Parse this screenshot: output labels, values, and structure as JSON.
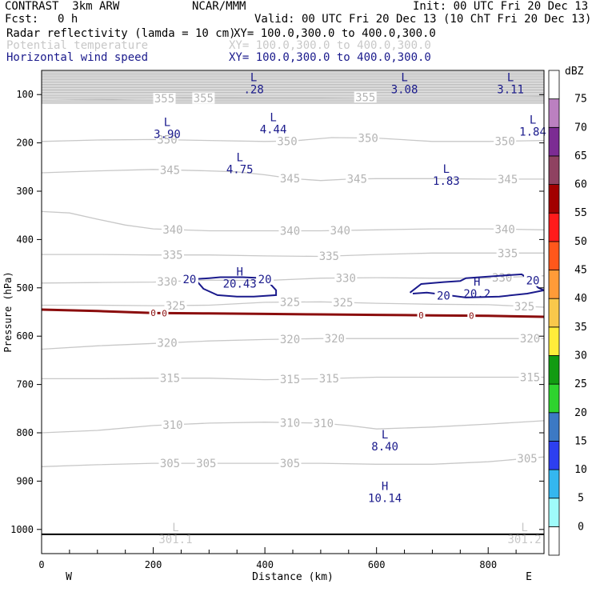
{
  "header": {
    "title": "CONTRAST  3km ARW",
    "center": "NCAR/MMM",
    "init": "Init: 00 UTC Fri 20 Dec 13",
    "fcst_label": "Fcst:",
    "fcst_value": "0 h",
    "valid": "Valid: 00 UTC Fri 20 Dec 13 (10 ChT Fri 20 Dec 13)",
    "fields": [
      {
        "name": "Radar reflectivity (lamda = 10 cm)",
        "xy": "XY= 100.0,300.0 to 400.0,300.0",
        "color": "#000000"
      },
      {
        "name": "Potential temperature",
        "xy": "XY= 100.0,300.0 to 400.0,300.0",
        "color": "#c8c8c8"
      },
      {
        "name": "Horizontal wind speed",
        "xy": "XY= 100.0,300.0 to 400.0,300.0",
        "color": "#1a1a8c"
      }
    ]
  },
  "chart_data": {
    "type": "cross-section contour",
    "xlabel": "Distance (km)",
    "ylabel": "Pressure (hPa)",
    "xlim": [
      0,
      900
    ],
    "ylim": [
      1050,
      50
    ],
    "x_ticks": [
      0,
      200,
      400,
      600,
      800
    ],
    "y_ticks": [
      100,
      200,
      300,
      400,
      500,
      600,
      700,
      800,
      900,
      1000
    ],
    "west_label": "W",
    "east_label": "E",
    "theta_contours": [
      {
        "value": "355",
        "points": [
          [
            0,
            112
          ],
          [
            100,
            110
          ],
          [
            200,
            108
          ],
          [
            300,
            107
          ],
          [
            400,
            106
          ],
          [
            500,
            106
          ],
          [
            600,
            105
          ],
          [
            700,
            105
          ],
          [
            800,
            105
          ],
          [
            900,
            104
          ]
        ],
        "labels": [
          [
            220,
            "355"
          ],
          [
            290,
            "355"
          ],
          [
            580,
            "355"
          ]
        ]
      },
      {
        "value": "350",
        "points": [
          [
            0,
            197
          ],
          [
            100,
            194
          ],
          [
            200,
            193
          ],
          [
            300,
            195
          ],
          [
            400,
            197
          ],
          [
            450,
            196
          ],
          [
            520,
            189
          ],
          [
            600,
            190
          ],
          [
            700,
            197
          ],
          [
            800,
            197
          ],
          [
            900,
            195
          ]
        ],
        "labels": [
          [
            225,
            "350"
          ],
          [
            440,
            "350"
          ],
          [
            585,
            "350"
          ],
          [
            830,
            "350"
          ]
        ]
      },
      {
        "value": "345",
        "points": [
          [
            0,
            262
          ],
          [
            100,
            258
          ],
          [
            200,
            255
          ],
          [
            300,
            258
          ],
          [
            350,
            260
          ],
          [
            400,
            266
          ],
          [
            450,
            274
          ],
          [
            500,
            278
          ],
          [
            550,
            275
          ],
          [
            600,
            274
          ],
          [
            700,
            274
          ],
          [
            800,
            275
          ],
          [
            900,
            275
          ]
        ],
        "labels": [
          [
            230,
            "345"
          ],
          [
            445,
            "345"
          ],
          [
            565,
            "345"
          ],
          [
            835,
            "345"
          ]
        ]
      },
      {
        "value": "340",
        "points": [
          [
            0,
            342
          ],
          [
            50,
            345
          ],
          [
            100,
            358
          ],
          [
            150,
            370
          ],
          [
            200,
            378
          ],
          [
            300,
            382
          ],
          [
            400,
            382
          ],
          [
            500,
            382
          ],
          [
            600,
            380
          ],
          [
            700,
            378
          ],
          [
            800,
            378
          ],
          [
            900,
            380
          ]
        ],
        "labels": [
          [
            235,
            "340"
          ],
          [
            445,
            "340"
          ],
          [
            535,
            "340"
          ],
          [
            830,
            "340"
          ]
        ]
      },
      {
        "value": "335",
        "points": [
          [
            0,
            431
          ],
          [
            100,
            431
          ],
          [
            200,
            432
          ],
          [
            300,
            432
          ],
          [
            400,
            434
          ],
          [
            500,
            435
          ],
          [
            600,
            431
          ],
          [
            700,
            428
          ],
          [
            800,
            428
          ],
          [
            900,
            428
          ]
        ],
        "labels": [
          [
            235,
            "335"
          ],
          [
            515,
            "335"
          ],
          [
            835,
            "335"
          ]
        ]
      },
      {
        "value": "330",
        "points": [
          [
            0,
            490
          ],
          [
            100,
            489
          ],
          [
            200,
            488
          ],
          [
            300,
            484
          ],
          [
            400,
            485
          ],
          [
            500,
            480
          ],
          [
            600,
            479
          ],
          [
            700,
            480
          ],
          [
            800,
            480
          ],
          [
            900,
            475
          ]
        ],
        "labels": [
          [
            225,
            "330"
          ],
          [
            545,
            "330"
          ],
          [
            825,
            "330"
          ]
        ]
      },
      {
        "value": "325",
        "points": [
          [
            0,
            536
          ],
          [
            100,
            536
          ],
          [
            200,
            537
          ],
          [
            300,
            536
          ],
          [
            400,
            530
          ],
          [
            500,
            529
          ],
          [
            600,
            532
          ],
          [
            700,
            534
          ],
          [
            800,
            535
          ],
          [
            900,
            540
          ]
        ],
        "labels": [
          [
            240,
            "325"
          ],
          [
            445,
            "325"
          ],
          [
            540,
            "325"
          ],
          [
            865,
            "325"
          ]
        ]
      },
      {
        "value": "320",
        "points": [
          [
            0,
            627
          ],
          [
            100,
            620
          ],
          [
            200,
            615
          ],
          [
            300,
            610
          ],
          [
            400,
            607
          ],
          [
            500,
            605
          ],
          [
            600,
            605
          ],
          [
            700,
            605
          ],
          [
            800,
            605
          ],
          [
            900,
            605
          ]
        ],
        "labels": [
          [
            225,
            "320"
          ],
          [
            445,
            "320"
          ],
          [
            525,
            "320"
          ],
          [
            875,
            "320"
          ]
        ]
      },
      {
        "value": "315",
        "points": [
          [
            0,
            688
          ],
          [
            100,
            688
          ],
          [
            200,
            687
          ],
          [
            300,
            687
          ],
          [
            400,
            690
          ],
          [
            500,
            688
          ],
          [
            600,
            685
          ],
          [
            700,
            685
          ],
          [
            800,
            685
          ],
          [
            900,
            685
          ]
        ],
        "labels": [
          [
            230,
            "315"
          ],
          [
            445,
            "315"
          ],
          [
            515,
            "315"
          ],
          [
            875,
            "315"
          ]
        ]
      },
      {
        "value": "310",
        "points": [
          [
            0,
            800
          ],
          [
            100,
            795
          ],
          [
            200,
            785
          ],
          [
            300,
            780
          ],
          [
            400,
            778
          ],
          [
            500,
            780
          ],
          [
            550,
            785
          ],
          [
            600,
            792
          ],
          [
            700,
            788
          ],
          [
            800,
            782
          ],
          [
            900,
            775
          ]
        ],
        "labels": [
          [
            235,
            "310"
          ],
          [
            445,
            "310"
          ],
          [
            505,
            "310"
          ]
        ]
      },
      {
        "value": "305",
        "points": [
          [
            0,
            870
          ],
          [
            100,
            866
          ],
          [
            200,
            863
          ],
          [
            300,
            863
          ],
          [
            400,
            863
          ],
          [
            500,
            863
          ],
          [
            600,
            865
          ],
          [
            700,
            865
          ],
          [
            800,
            860
          ],
          [
            900,
            850
          ]
        ],
        "labels": [
          [
            230,
            "305"
          ],
          [
            295,
            "305"
          ],
          [
            445,
            "305"
          ],
          [
            870,
            "305"
          ]
        ]
      }
    ],
    "freezing_level": {
      "label": "0",
      "points": [
        [
          0,
          545
        ],
        [
          100,
          548
        ],
        [
          200,
          552
        ],
        [
          300,
          553
        ],
        [
          400,
          554
        ],
        [
          500,
          555
        ],
        [
          600,
          556
        ],
        [
          700,
          557
        ],
        [
          800,
          558
        ],
        [
          900,
          560
        ]
      ],
      "labels": [
        200,
        220,
        680,
        770
      ]
    },
    "wind_contours": [
      {
        "label": "20",
        "points": [
          [
            275,
            482
          ],
          [
            300,
            480
          ],
          [
            320,
            478
          ],
          [
            360,
            478
          ],
          [
            400,
            480
          ],
          [
            420,
            505
          ],
          [
            420,
            515
          ],
          [
            380,
            518
          ],
          [
            350,
            518
          ],
          [
            315,
            515
          ],
          [
            290,
            502
          ],
          [
            275,
            482
          ]
        ],
        "labels": [
          [
            265,
            482
          ],
          [
            400,
            482
          ]
        ]
      },
      {
        "label": "20",
        "points": [
          [
            660,
            510
          ],
          [
            680,
            492
          ],
          [
            720,
            488
          ],
          [
            750,
            486
          ],
          [
            760,
            480
          ],
          [
            820,
            475
          ],
          [
            860,
            472
          ],
          [
            880,
            488
          ],
          [
            890,
            500
          ],
          [
            900,
            505
          ],
          [
            870,
            512
          ],
          [
            820,
            518
          ],
          [
            760,
            520
          ],
          [
            720,
            514
          ],
          [
            690,
            510
          ],
          [
            665,
            512
          ]
        ],
        "labels": [
          [
            720,
            516
          ],
          [
            880,
            485
          ]
        ]
      }
    ],
    "extrema": [
      {
        "type": "L",
        "value": ".28",
        "x": 380,
        "p": 72,
        "color": "#1a1a8c"
      },
      {
        "type": "L",
        "value": "3.08",
        "x": 650,
        "p": 72,
        "color": "#1a1a8c"
      },
      {
        "type": "L",
        "value": "3.11",
        "x": 840,
        "p": 72,
        "color": "#1a1a8c"
      },
      {
        "type": "L",
        "value": "3.90",
        "x": 225,
        "p": 165,
        "color": "#1a1a8c"
      },
      {
        "type": "L",
        "value": "4.44",
        "x": 415,
        "p": 155,
        "color": "#1a1a8c"
      },
      {
        "type": "L",
        "value": "1.84",
        "x": 880,
        "p": 160,
        "color": "#1a1a8c"
      },
      {
        "type": "L",
        "value": "4.75",
        "x": 355,
        "p": 238,
        "color": "#1a1a8c"
      },
      {
        "type": "L",
        "value": "1.83",
        "x": 725,
        "p": 262,
        "color": "#1a1a8c"
      },
      {
        "type": "H",
        "value": "20.43",
        "x": 355,
        "p": 475,
        "color": "#1a1a8c"
      },
      {
        "type": "H",
        "value": "20.2",
        "x": 780,
        "p": 495,
        "color": "#1a1a8c"
      },
      {
        "type": "L",
        "value": "8.40",
        "x": 615,
        "p": 812,
        "color": "#1a1a8c"
      },
      {
        "type": "H",
        "value": "10.14",
        "x": 615,
        "p": 918,
        "color": "#1a1a8c"
      },
      {
        "type": "L",
        "value": "301.1",
        "x": 240,
        "p": 1004,
        "color": "#c8c8c8"
      },
      {
        "type": "L",
        "value": "301.2",
        "x": 865,
        "p": 1004,
        "color": "#c8c8c8"
      }
    ],
    "ground_pressure": 1010,
    "upper_band": {
      "from": 50,
      "to": 118
    }
  },
  "colorbar": {
    "unit": "dBZ",
    "levels": [
      "0",
      "5",
      "10",
      "15",
      "20",
      "25",
      "30",
      "35",
      "40",
      "45",
      "50",
      "55",
      "60",
      "65",
      "70",
      "75"
    ],
    "colors": [
      "#ffffff",
      "#9ffbfa",
      "#34b7ef",
      "#2d3ff0",
      "#3c79c4",
      "#2ed32e",
      "#129b12",
      "#ffed3a",
      "#f9c84b",
      "#ff9b38",
      "#ff571b",
      "#ff1b1b",
      "#a20000",
      "#8f4261",
      "#7c2c93",
      "#bb80c0",
      "#ffffff"
    ]
  }
}
